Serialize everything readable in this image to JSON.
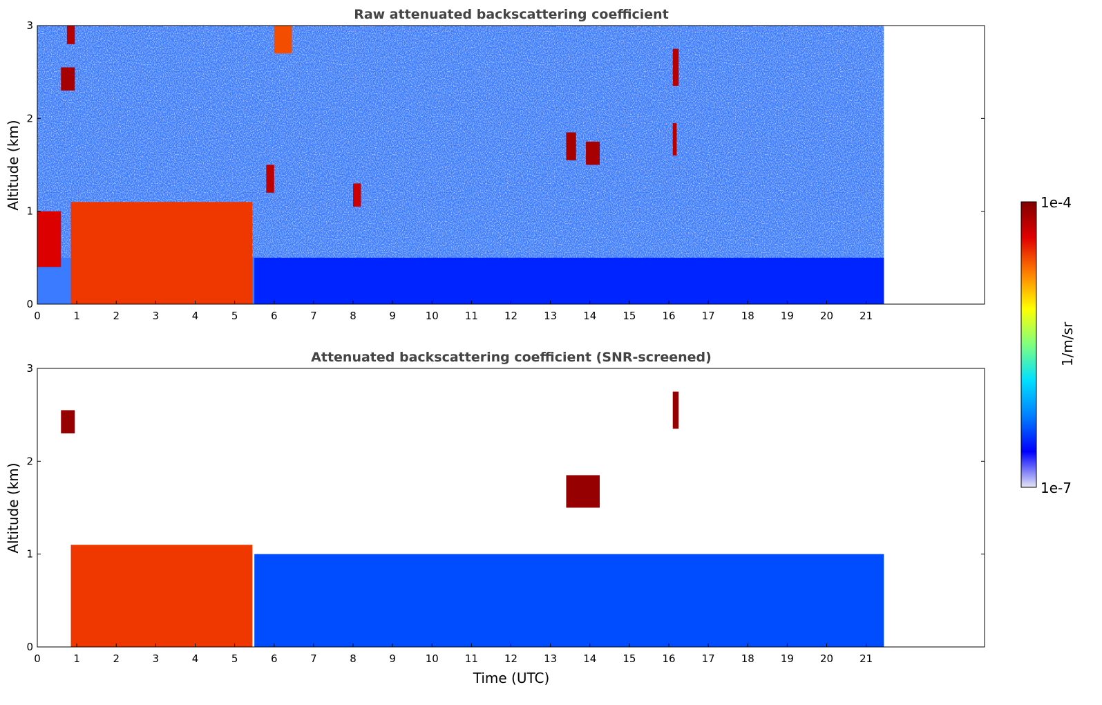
{
  "chart_data": [
    {
      "type": "heatmap",
      "title": "Raw attenuated backscattering coefficient",
      "xlabel": "",
      "ylabel": "Altitude (km)",
      "xlim": [
        0,
        24
      ],
      "ylim": [
        0,
        3
      ],
      "xticks": [
        0,
        1,
        2,
        3,
        4,
        5,
        6,
        7,
        8,
        9,
        10,
        11,
        12,
        13,
        14,
        15,
        16,
        17,
        18,
        19,
        20,
        21
      ],
      "yticks": [
        0,
        1,
        2,
        3
      ],
      "data_end_time": 21.45,
      "features": [
        {
          "name": "boundary layer aerosol",
          "t": [
            0.85,
            5.45
          ],
          "alt": [
            0,
            1.1
          ],
          "level": 0.82
        },
        {
          "name": "low cloud",
          "t": [
            0,
            0.6
          ],
          "alt": [
            0.4,
            1.0
          ],
          "level": 0.88
        },
        {
          "name": "cloud",
          "t": [
            0.6,
            0.95
          ],
          "alt": [
            2.3,
            2.55
          ],
          "level": 0.95
        },
        {
          "name": "cloud",
          "t": [
            0.75,
            0.95
          ],
          "alt": [
            2.8,
            3.0
          ],
          "level": 0.93
        },
        {
          "name": "cloud",
          "t": [
            5.8,
            6.0
          ],
          "alt": [
            1.2,
            1.5
          ],
          "level": 0.92
        },
        {
          "name": "cloud",
          "t": [
            6.0,
            6.45
          ],
          "alt": [
            2.7,
            3.0
          ],
          "level": 0.8
        },
        {
          "name": "cloud",
          "t": [
            8.0,
            8.2
          ],
          "alt": [
            1.05,
            1.3
          ],
          "level": 0.9
        },
        {
          "name": "cloud",
          "t": [
            13.4,
            13.65
          ],
          "alt": [
            1.55,
            1.85
          ],
          "level": 0.95
        },
        {
          "name": "cloud",
          "t": [
            13.9,
            14.25
          ],
          "alt": [
            1.5,
            1.75
          ],
          "level": 0.95
        },
        {
          "name": "cloud",
          "t": [
            16.1,
            16.25
          ],
          "alt": [
            2.35,
            2.75
          ],
          "level": 0.93
        },
        {
          "name": "cloud",
          "t": [
            16.1,
            16.2
          ],
          "alt": [
            1.6,
            1.95
          ],
          "level": 0.93
        }
      ]
    },
    {
      "type": "heatmap",
      "title": "Attenuated backscattering coefficient (SNR-screened)",
      "xlabel": "Time (UTC)",
      "ylabel": "Altitude (km)",
      "xlim": [
        0,
        24
      ],
      "ylim": [
        0,
        3
      ],
      "xticks": [
        0,
        1,
        2,
        3,
        4,
        5,
        6,
        7,
        8,
        9,
        10,
        11,
        12,
        13,
        14,
        15,
        16,
        17,
        18,
        19,
        20,
        21
      ],
      "yticks": [
        0,
        1,
        2,
        3
      ],
      "data_end_time": 21.45,
      "features": [
        {
          "name": "boundary layer aerosol",
          "t": [
            0.85,
            5.45
          ],
          "alt": [
            0,
            1.1
          ],
          "level": 0.82
        },
        {
          "name": "screened aerosol",
          "t": [
            5.5,
            21.45
          ],
          "alt": [
            0,
            1.0
          ],
          "level": 0.2
        },
        {
          "name": "cloud",
          "t": [
            0.6,
            0.95
          ],
          "alt": [
            2.3,
            2.55
          ],
          "level": 0.97
        },
        {
          "name": "cloud",
          "t": [
            13.4,
            14.25
          ],
          "alt": [
            1.5,
            1.85
          ],
          "level": 0.97
        },
        {
          "name": "cloud",
          "t": [
            16.1,
            16.25
          ],
          "alt": [
            2.35,
            2.75
          ],
          "level": 0.97
        }
      ]
    }
  ],
  "colorbar": {
    "label": "1/m/sr",
    "max_label": "1e-4",
    "min_label": "1e-7",
    "scale": "log",
    "range": [
      1e-07,
      0.0001
    ],
    "colormap": [
      "#e6e6f5",
      "#0000ff",
      "#0080ff",
      "#00e0ff",
      "#7fff7f",
      "#ffff00",
      "#ff8000",
      "#e00000",
      "#800000"
    ]
  }
}
